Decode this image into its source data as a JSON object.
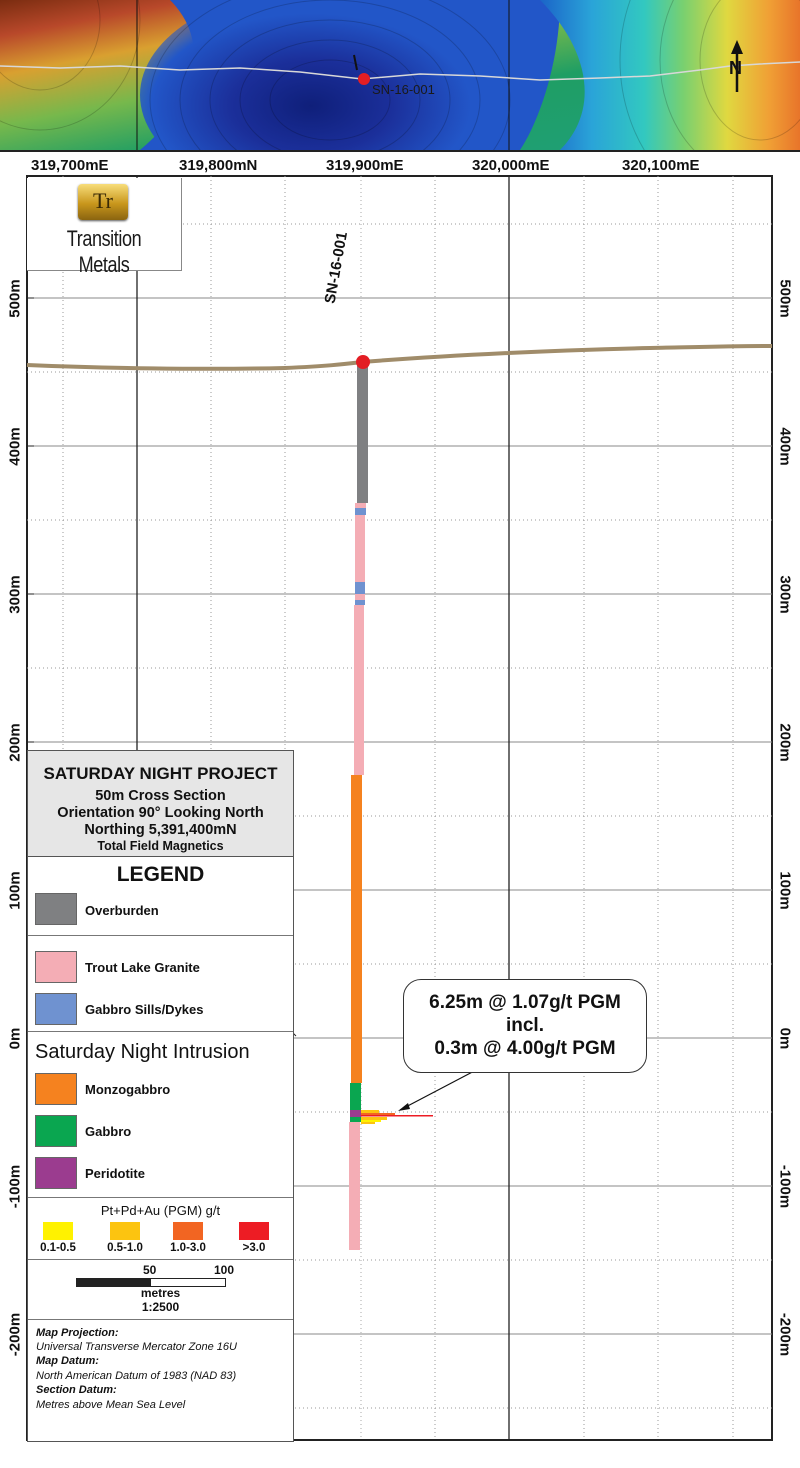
{
  "map_strip": {
    "hole_label": "SN-16-001",
    "north_label": "N",
    "palette": [
      "#8a3a12",
      "#b8482a",
      "#d9a030",
      "#76b84c",
      "#1f9e64",
      "#1fa07c",
      "#2256c8",
      "#1b2f9a",
      "#1b64c8",
      "#2aa4d8",
      "#32c8c0",
      "#e0d840",
      "#f0a035",
      "#e8742a"
    ]
  },
  "section": {
    "x_labels": [
      "319,700mE",
      "319,800mN",
      "319,900mE",
      "320,000mE",
      "320,100mE"
    ],
    "left_elevation_labels": [
      "500m",
      "400m",
      "300m",
      "200m",
      "100m",
      "0m",
      "-100m",
      "-200m"
    ],
    "right_elevation_labels": [
      "500m",
      "400m",
      "300m",
      "200m",
      "100m",
      "0m",
      "-100m",
      "-200m"
    ],
    "hole_label": "SN-16-001",
    "ground_color": "#a08c6a",
    "collar_color": "#e31e24"
  },
  "logo": {
    "monogram": "Tr",
    "company": "Transition Metals"
  },
  "title_box": {
    "project": "SATURDAY NIGHT PROJECT",
    "line1": "50m Cross Section",
    "line2": "Orientation 90° Looking North",
    "line3": "Northing 5,391,400mN",
    "line4": "Total Field Magnetics"
  },
  "legend": {
    "heading": "LEGEND",
    "units": [
      {
        "label": "Overburden",
        "color": "#7f8082"
      },
      {
        "label": "Trout Lake Granite",
        "color": "#f4adb5"
      },
      {
        "label": "Gabbro Sills/Dykes",
        "color": "#6f92d0"
      }
    ],
    "intrusion_heading": "Saturday Night Intrusion",
    "intrusion_units": [
      {
        "label": "Monzogabbro",
        "color": "#f5821f"
      },
      {
        "label": "Gabbro",
        "color": "#0aa650"
      },
      {
        "label": "Peridotite",
        "color": "#9b3c8f"
      }
    ],
    "grade_title": "Pt+Pd+Au (PGM) g/t",
    "grades": [
      {
        "label": "0.1-0.5",
        "color": "#fff200"
      },
      {
        "label": "0.5-1.0",
        "color": "#fcc410"
      },
      {
        "label": "1.0-3.0",
        "color": "#f26522"
      },
      {
        "label": ">3.0",
        "color": "#ed1c24"
      }
    ]
  },
  "scale": {
    "tick_50": "50",
    "tick_100": "100",
    "unit": "metres",
    "ratio": "1:2500"
  },
  "notes": {
    "projection_label": "Map Projection:",
    "projection_value": "Universal Transverse Mercator Zone 16U",
    "datum_label": "Map Datum:",
    "datum_value": "North American Datum of 1983 (NAD 83)",
    "section_datum_label": "Section Datum:",
    "section_datum_value": "Metres above Mean Sea Level"
  },
  "callout": {
    "line1": "6.25m @ 1.07g/t PGM",
    "line2": "incl.",
    "line3": "0.3m @ 4.00g/t PGM"
  }
}
